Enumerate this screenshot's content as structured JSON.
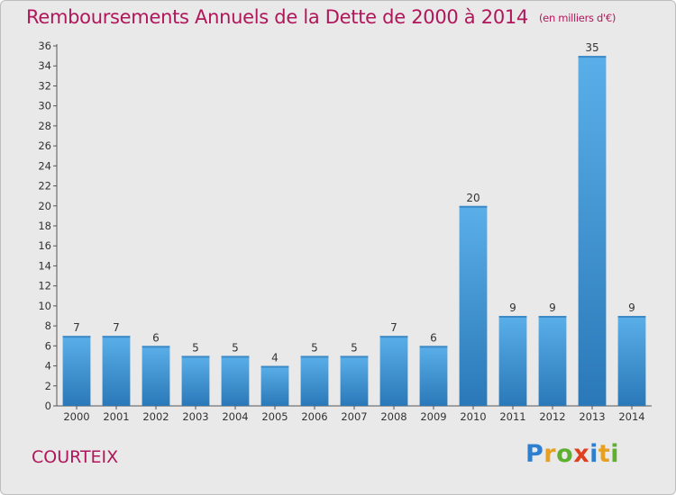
{
  "chart_data": {
    "type": "bar",
    "title": "Remboursements Annuels de la Dette de 2000 à 2014",
    "subtitle": "(en milliers d'€)",
    "categories": [
      "2000",
      "2001",
      "2002",
      "2003",
      "2004",
      "2005",
      "2006",
      "2007",
      "2008",
      "2009",
      "2010",
      "2011",
      "2012",
      "2013",
      "2014"
    ],
    "values": [
      7,
      7,
      6,
      5,
      5,
      4,
      5,
      5,
      7,
      6,
      20,
      9,
      9,
      35,
      9
    ],
    "ylim": [
      0,
      36
    ],
    "yticks": [
      "0",
      "2",
      "4",
      "6",
      "8",
      "10",
      "12",
      "14",
      "16",
      "18",
      "20",
      "22",
      "24",
      "26",
      "28",
      "30",
      "32",
      "34",
      "36"
    ],
    "grid": false,
    "bar_color": "#3a8fd4"
  },
  "commune": "COURTEIX",
  "brand": {
    "letters": [
      "P",
      "r",
      "o",
      "x",
      "i",
      "t",
      "i"
    ],
    "colors": [
      "#2e7fd0",
      "#e8a020",
      "#5fb030",
      "#e04020",
      "#2e7fd0",
      "#e8a020",
      "#5fb030"
    ]
  },
  "colors": {
    "title": "#b0175a",
    "background": "#e9e9e9"
  }
}
